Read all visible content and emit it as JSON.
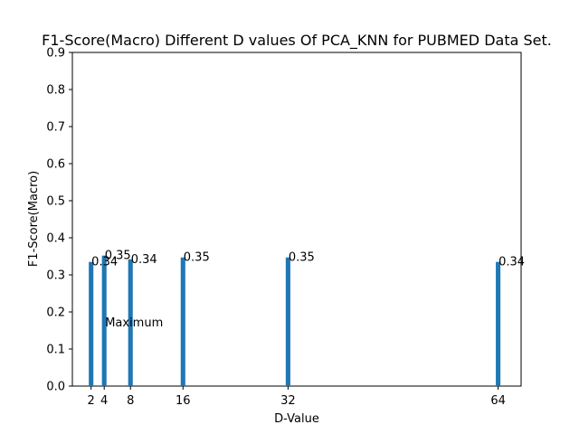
{
  "chart_data": {
    "type": "bar",
    "title": "F1-Score(Macro) Different D values Of PCA_KNN for PUBMED Data Set.",
    "xlabel": "D-Value",
    "ylabel": "F1-Score(Macro)",
    "x": [
      2,
      4,
      8,
      16,
      32,
      64
    ],
    "values": [
      0.335,
      0.352,
      0.342,
      0.347,
      0.347,
      0.335
    ],
    "data_labels": [
      "0.34",
      "0.35",
      "0.34",
      "0.35",
      "0.35",
      "0.34"
    ],
    "xticks": [
      "2",
      "4",
      "8",
      "16",
      "32",
      "64"
    ],
    "yticks": [
      "0.0",
      "0.1",
      "0.2",
      "0.3",
      "0.4",
      "0.5",
      "0.6",
      "0.7",
      "0.8",
      "0.9"
    ],
    "xlim": [
      -0.85,
      67.5
    ],
    "ylim": [
      0,
      0.9
    ],
    "bar_width": 0.7,
    "bar_color": "#1f77b4",
    "grid": false,
    "annotation": {
      "text": "Maximum",
      "x": 4,
      "y": 0.18
    }
  }
}
